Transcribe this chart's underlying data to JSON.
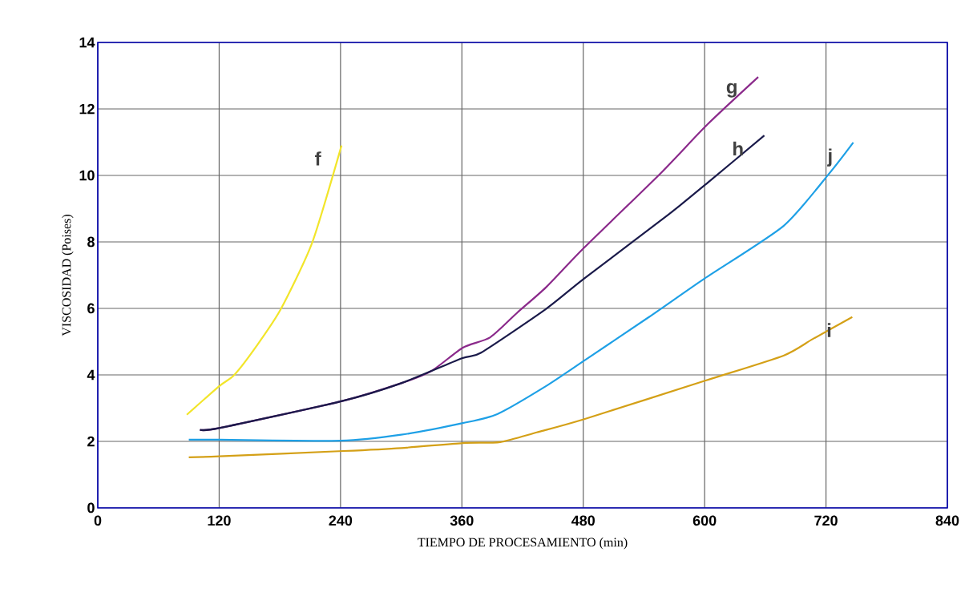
{
  "chart_data": {
    "type": "line",
    "xlabel": "TIEMPO DE PROCESAMIENTO  (min)",
    "ylabel": "VISCOSIDAD (Poises)",
    "xlim": [
      0,
      840
    ],
    "xticks": [
      0,
      120,
      240,
      360,
      480,
      600,
      720,
      840
    ],
    "ylim": [
      0,
      14
    ],
    "yticks": [
      0,
      2,
      4,
      6,
      8,
      10,
      12,
      14
    ],
    "grid": true,
    "marker": "none",
    "line_style": "solid",
    "series": [
      {
        "name": "f",
        "color": "#f2e52a",
        "x": [
          88,
          120,
          135,
          157,
          181,
          212,
          241
        ],
        "values": [
          2.8,
          3.66,
          4.0,
          4.87,
          5.98,
          7.98,
          10.9
        ]
      },
      {
        "name": "g",
        "color": "#8b2a8b",
        "x": [
          101,
          120,
          240,
          300,
          330,
          361,
          388,
          415,
          443,
          481,
          556,
          603,
          653
        ],
        "values": [
          2.35,
          2.4,
          3.2,
          3.75,
          4.12,
          4.82,
          5.13,
          5.88,
          6.63,
          7.83,
          10.05,
          11.54,
          12.96
        ]
      },
      {
        "name": "h",
        "color": "#1a1a4a",
        "x": [
          101,
          120,
          240,
          300,
          360,
          379,
          443,
          481,
          565,
          603,
          659
        ],
        "values": [
          2.35,
          2.4,
          3.2,
          3.75,
          4.5,
          4.67,
          5.98,
          6.9,
          8.84,
          9.78,
          11.2
        ]
      },
      {
        "name": "j",
        "color": "#1ea0e6",
        "x": [
          90,
          120,
          240,
          300,
          361,
          395,
          443,
          481,
          545,
          600,
          678,
          723,
          747
        ],
        "values": [
          2.05,
          2.05,
          2.02,
          2.2,
          2.55,
          2.82,
          3.66,
          4.43,
          5.74,
          6.9,
          8.48,
          10.05,
          10.99
        ]
      },
      {
        "name": "i",
        "color": "#d4a017",
        "x": [
          90,
          120,
          243,
          300,
          361,
          398,
          434,
          481,
          601,
          678,
          707,
          746
        ],
        "values": [
          1.52,
          1.55,
          1.71,
          1.8,
          1.95,
          1.98,
          2.27,
          2.67,
          3.83,
          4.58,
          5.08,
          5.74
        ]
      }
    ]
  }
}
